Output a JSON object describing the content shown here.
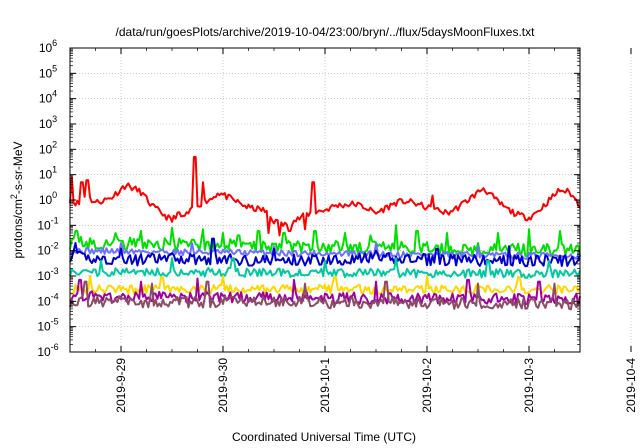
{
  "chart_data": {
    "type": "line",
    "title": "/data/run/goesPlots/archive/2019-10-04/23:00/bryn/../flux/5daysMoonFluxes.txt",
    "xlabel": "Coordinated Universal Time (UTC)",
    "ylabel_parts": [
      "protons/cm",
      "2",
      "-s-sr-MeV"
    ],
    "yscale": "log",
    "ylim_exp": [
      -6,
      6
    ],
    "y_ticks": [
      {
        "base": "10",
        "exp": "-6"
      },
      {
        "base": "10",
        "exp": "-5"
      },
      {
        "base": "10",
        "exp": "-4"
      },
      {
        "base": "10",
        "exp": "-3"
      },
      {
        "base": "10",
        "exp": "-2"
      },
      {
        "base": "10",
        "exp": "-1"
      },
      {
        "base": "10",
        "exp": "0"
      },
      {
        "base": "10",
        "exp": "1"
      },
      {
        "base": "10",
        "exp": "2"
      },
      {
        "base": "10",
        "exp": "3"
      },
      {
        "base": "10",
        "exp": "4"
      },
      {
        "base": "10",
        "exp": "5"
      },
      {
        "base": "10",
        "exp": "6"
      }
    ],
    "x_ticks": [
      "2019-9-29",
      "2019-9-30",
      "2019-10-1",
      "2019-10-2",
      "2019-10-3",
      "2019-10-4"
    ],
    "xlim_days": [
      0,
      5
    ],
    "grid": true,
    "series": [
      {
        "color": "#ff0000",
        "base": [
          [
            0,
            1.0
          ],
          [
            0.05,
            0.8
          ],
          [
            0.1,
            0.7
          ],
          [
            0.15,
            1.5
          ],
          [
            0.25,
            0.8
          ],
          [
            0.3,
            0.9
          ],
          [
            0.4,
            1.2
          ],
          [
            0.55,
            4
          ],
          [
            0.7,
            2
          ],
          [
            0.8,
            0.6
          ],
          [
            0.9,
            0.3
          ],
          [
            1.0,
            0.15
          ],
          [
            1.05,
            0.3
          ],
          [
            1.1,
            0.2
          ],
          [
            1.2,
            0.4
          ],
          [
            1.3,
            0.8
          ],
          [
            1.4,
            1.2
          ],
          [
            1.45,
            2
          ],
          [
            1.6,
            1.0
          ],
          [
            1.75,
            0.5
          ],
          [
            1.9,
            0.4
          ],
          [
            2.0,
            0.15
          ],
          [
            2.1,
            0.1
          ],
          [
            2.2,
            0.15
          ],
          [
            2.35,
            0.3
          ],
          [
            2.5,
            0.4
          ],
          [
            2.6,
            0.6
          ],
          [
            2.8,
            0.7
          ],
          [
            2.9,
            0.5
          ],
          [
            3.0,
            0.3
          ],
          [
            3.1,
            0.5
          ],
          [
            3.2,
            0.8
          ],
          [
            3.3,
            0.9
          ],
          [
            3.4,
            0.7
          ],
          [
            3.5,
            0.5
          ],
          [
            3.6,
            0.4
          ],
          [
            3.7,
            0.3
          ],
          [
            3.8,
            0.5
          ],
          [
            3.9,
            1.0
          ],
          [
            4.0,
            2.0
          ],
          [
            4.05,
            3.0
          ],
          [
            4.1,
            2.0
          ],
          [
            4.2,
            0.8
          ],
          [
            4.3,
            0.4
          ],
          [
            4.4,
            0.25
          ],
          [
            4.5,
            0.2
          ],
          [
            4.6,
            0.4
          ],
          [
            4.7,
            1.0
          ],
          [
            4.8,
            2.5
          ],
          [
            4.9,
            2.0
          ],
          [
            5.0,
            0.6
          ]
        ],
        "spikes": [
          [
            0.02,
            8
          ],
          [
            0.12,
            5
          ],
          [
            0.17,
            6
          ],
          [
            1.22,
            50
          ],
          [
            1.3,
            5
          ],
          [
            1.95,
            0.05
          ],
          [
            2.05,
            0.04
          ],
          [
            2.15,
            0.06
          ],
          [
            2.3,
            0.07
          ],
          [
            2.38,
            5
          ],
          [
            3.55,
            1.5
          ]
        ],
        "noise": 0.25,
        "seed": 11
      },
      {
        "color": "#00e000",
        "base": [
          [
            0,
            0.02
          ],
          [
            5,
            0.01
          ]
        ],
        "spikes": [
          [
            0.06,
            0.06
          ],
          [
            0.45,
            0.05
          ],
          [
            0.7,
            0.06
          ],
          [
            1.0,
            0.08
          ],
          [
            1.3,
            0.07
          ],
          [
            1.5,
            0.05
          ],
          [
            1.65,
            0.04
          ],
          [
            1.85,
            0.06
          ],
          [
            2.1,
            0.05
          ],
          [
            2.4,
            0.06
          ],
          [
            2.7,
            0.05
          ],
          [
            2.95,
            0.04
          ],
          [
            3.2,
            0.1
          ],
          [
            3.4,
            0.06
          ],
          [
            3.7,
            0.05
          ],
          [
            4.2,
            0.05
          ],
          [
            4.5,
            0.07
          ],
          [
            4.8,
            0.06
          ]
        ],
        "noise": 0.5,
        "seed": 21
      },
      {
        "color": "#7070ff",
        "base": [
          [
            0,
            0.01
          ],
          [
            5,
            0.006
          ]
        ],
        "spikes": [
          [
            0.5,
            0.02
          ],
          [
            1.2,
            0.02
          ],
          [
            2.0,
            0.015
          ],
          [
            3.0,
            0.02
          ],
          [
            4.0,
            0.015
          ]
        ],
        "noise": 0.25,
        "seed": 31
      },
      {
        "color": "#0000c8",
        "base": [
          [
            0,
            0.006
          ],
          [
            0.5,
            0.004
          ],
          [
            1.0,
            0.005
          ],
          [
            2.0,
            0.004
          ],
          [
            3.0,
            0.005
          ],
          [
            4.0,
            0.004
          ],
          [
            5.0,
            0.004
          ]
        ],
        "spikes": [
          [
            0.05,
            0.02
          ],
          [
            0.5,
            0.012
          ],
          [
            1.4,
            0.03
          ],
          [
            2.0,
            0.012
          ],
          [
            3.0,
            0.01
          ],
          [
            3.6,
            0.012
          ],
          [
            4.3,
            0.015
          ]
        ],
        "noise": 0.45,
        "seed": 41
      },
      {
        "color": "#00c8a0",
        "base": [
          [
            0,
            0.0015
          ],
          [
            5,
            0.0012
          ]
        ],
        "spikes": [
          [
            0.3,
            0.004
          ],
          [
            1.0,
            0.005
          ],
          [
            1.6,
            0.005
          ],
          [
            2.5,
            0.004
          ],
          [
            3.2,
            0.005
          ],
          [
            4.1,
            0.004
          ],
          [
            4.7,
            0.004
          ]
        ],
        "noise": 0.35,
        "seed": 51
      },
      {
        "color": "#ffd700",
        "base": [
          [
            0,
            0.0003
          ],
          [
            5,
            0.0003
          ]
        ],
        "spikes": [
          [
            0.2,
            0.001
          ],
          [
            0.9,
            0.0009
          ],
          [
            1.5,
            0.001
          ],
          [
            2.6,
            0.0009
          ],
          [
            3.5,
            0.001
          ],
          [
            4.4,
            0.0009
          ]
        ],
        "noise": 0.35,
        "seed": 61
      },
      {
        "color": "#a000a0",
        "base": [
          [
            0,
            0.00015
          ],
          [
            5,
            0.00012
          ]
        ],
        "spikes": [
          [
            0.1,
            0.0007
          ],
          [
            0.7,
            0.0006
          ],
          [
            1.25,
            0.0008
          ],
          [
            2.2,
            0.0007
          ],
          [
            3.0,
            0.0006
          ],
          [
            3.9,
            0.0007
          ],
          [
            4.6,
            0.0006
          ]
        ],
        "noise": 0.45,
        "seed": 71
      },
      {
        "color": "#8b4c65",
        "base": [
          [
            0,
            0.0001
          ],
          [
            5,
            8e-05
          ]
        ],
        "spikes": [
          [
            0.15,
            0.0006
          ],
          [
            0.8,
            0.0005
          ],
          [
            1.35,
            0.0006
          ],
          [
            2.3,
            0.0005
          ],
          [
            3.1,
            0.0006
          ],
          [
            4.0,
            0.0005
          ],
          [
            4.75,
            0.0005
          ]
        ],
        "noise": 0.45,
        "seed": 81
      }
    ]
  }
}
